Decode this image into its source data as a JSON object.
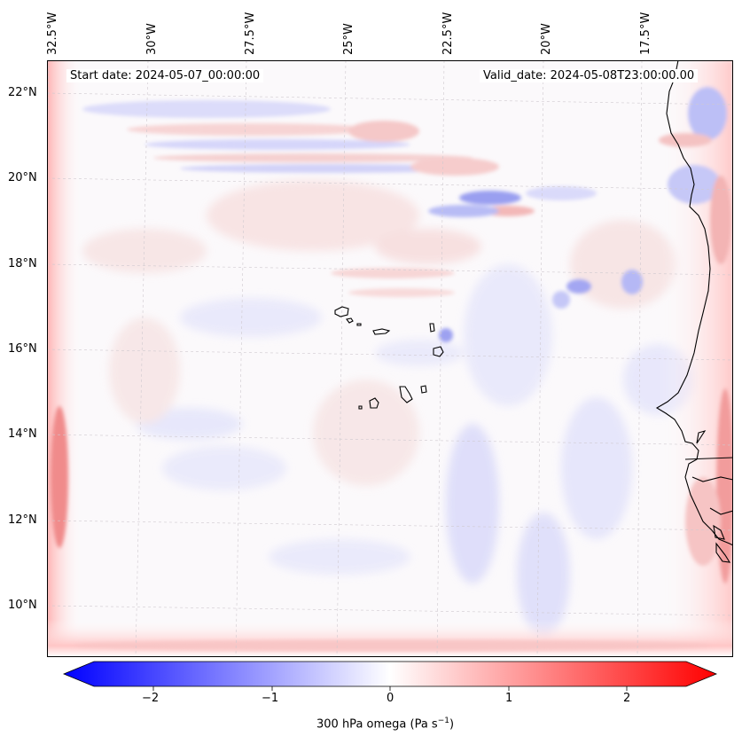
{
  "map": {
    "start_date": "Start date: 2024-05-07_00:00:00",
    "valid_date": "Valid_date: 2024-05-08T23:00:00.00",
    "lon_labels": [
      "32.5°W",
      "30°W",
      "27.5°W",
      "25°W",
      "22.5°W",
      "20°W",
      "17.5°W"
    ],
    "lat_labels": [
      "22°N",
      "20°N",
      "18°N",
      "16°N",
      "14°N",
      "12°N",
      "10°N"
    ],
    "colormap": "bwr",
    "colorbar": {
      "label": "300 hPa omega (Pa s",
      "label_sup": "−1",
      "label_end": ")",
      "ticks": [
        "−2",
        "−1",
        "0",
        "1",
        "2"
      ],
      "range": [
        -2.7,
        2.7
      ],
      "extend": "both"
    },
    "gridlines": true,
    "features": [
      "coastlines",
      "Cape Verde islands",
      "West African coast"
    ]
  }
}
